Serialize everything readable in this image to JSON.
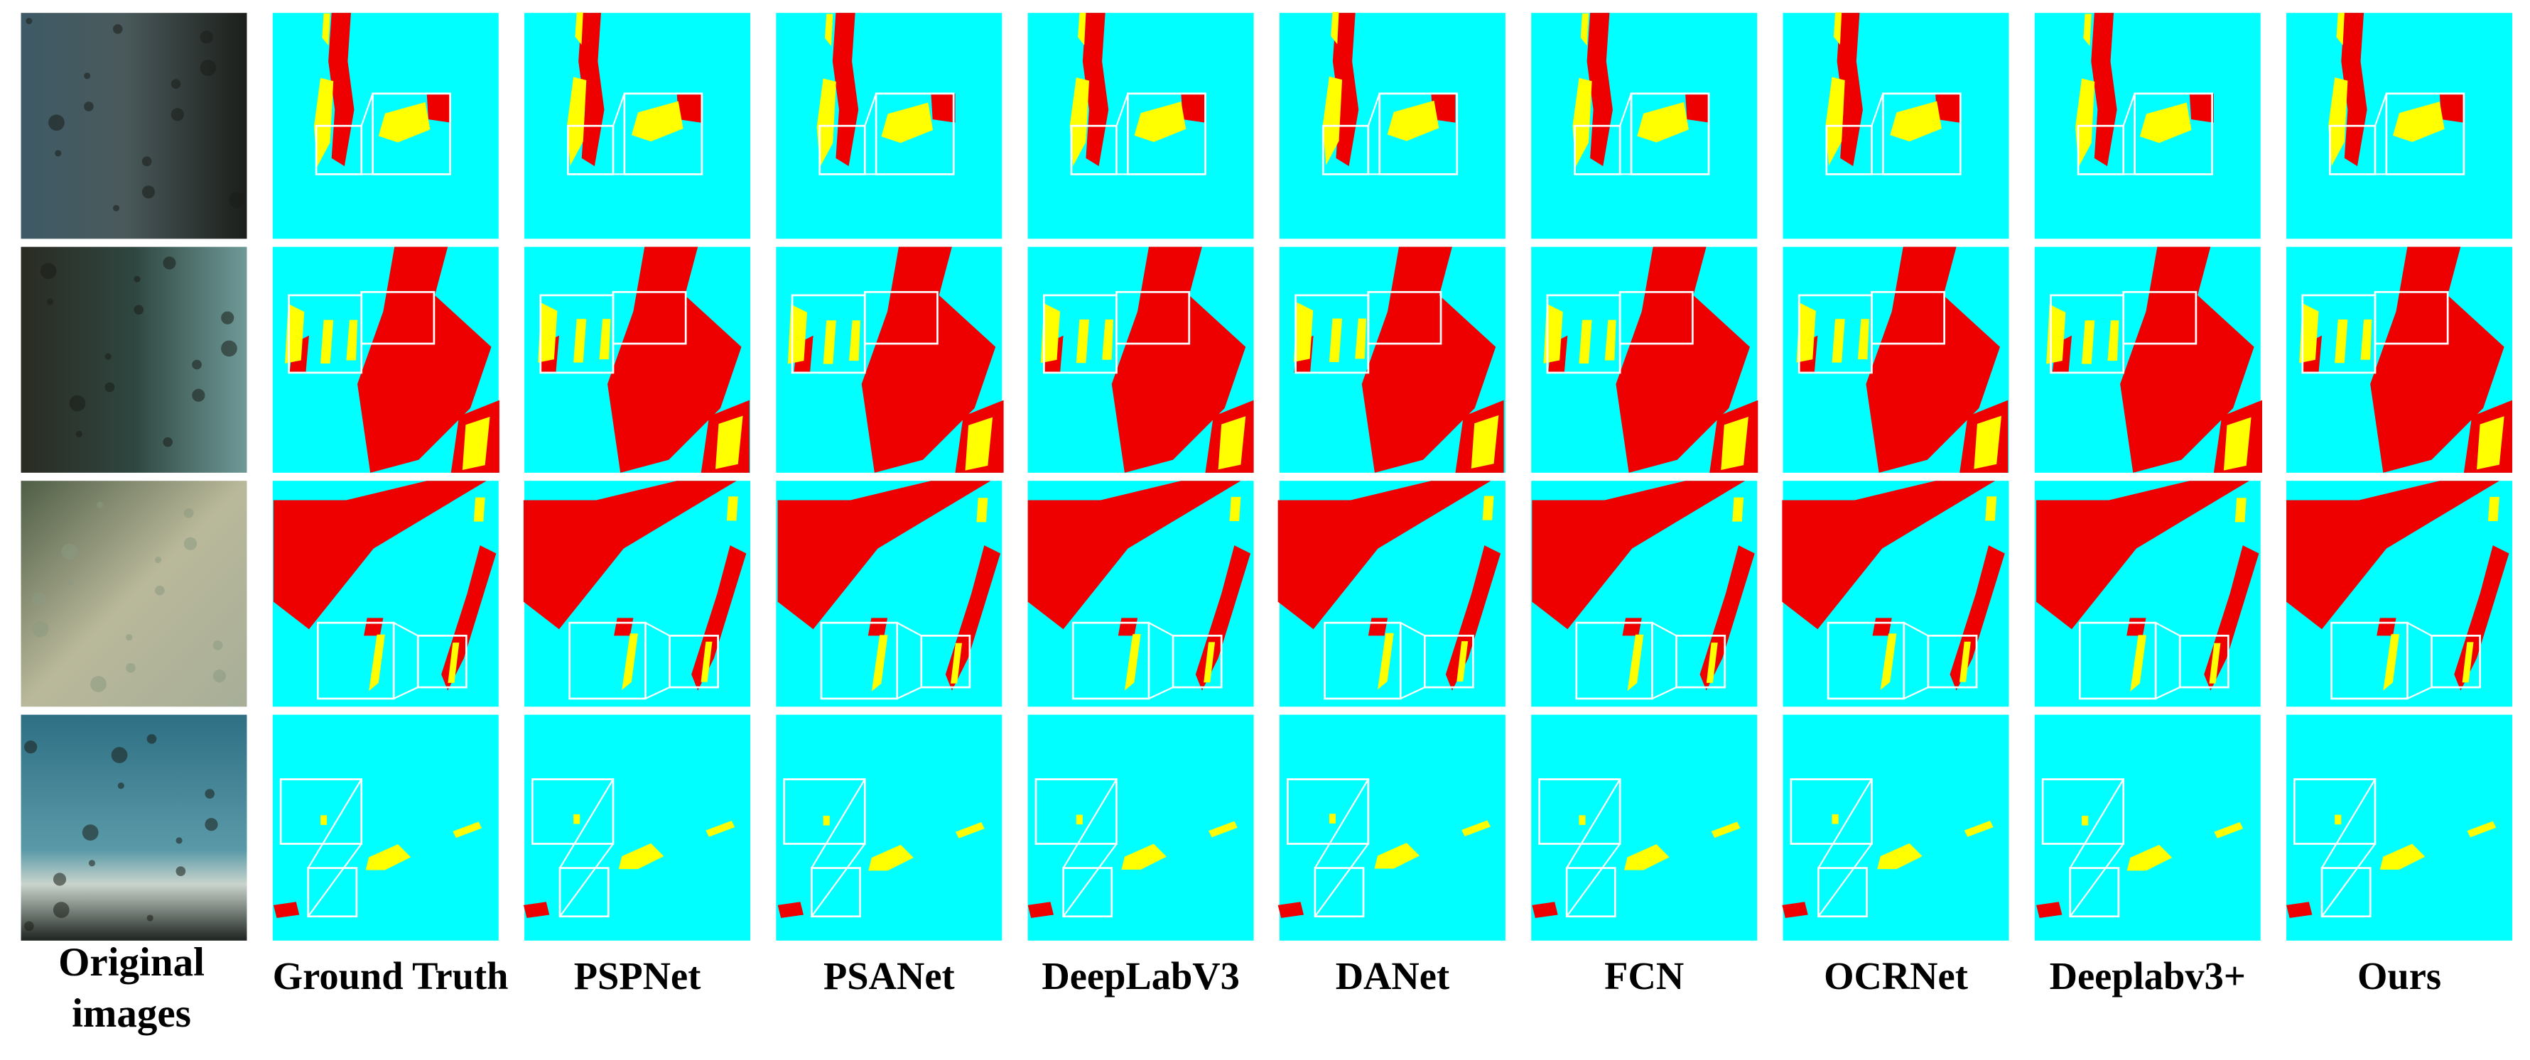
{
  "columns": [
    "Original images",
    "Ground Truth",
    "PSPNet",
    "PSANet",
    "DeepLabV3",
    "DANet",
    "FCN",
    "OCRNet",
    "Deeplabv3+",
    "Ours"
  ]
}
